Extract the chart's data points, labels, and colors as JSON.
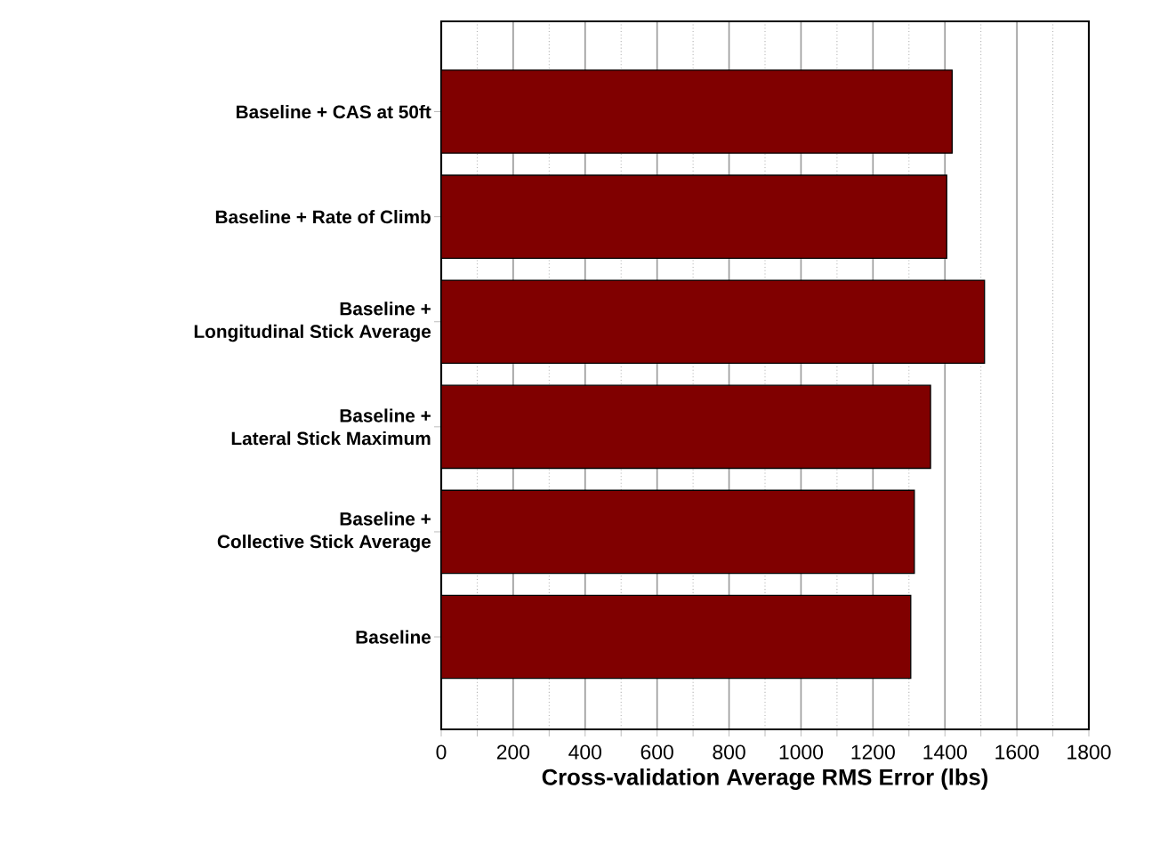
{
  "chart_data": {
    "type": "bar",
    "orientation": "horizontal",
    "categories": [
      "Baseline + CAS at 50ft",
      "Baseline + Rate of Climb",
      "Baseline +\nLongitudinal Stick Average",
      "Baseline +\nLateral Stick Maximum",
      "Baseline +\nCollective Stick Average",
      "Baseline"
    ],
    "values": [
      1420,
      1405,
      1510,
      1360,
      1315,
      1305
    ],
    "color": "#800000",
    "xlabel": "Cross-validation Average RMS Error (lbs)",
    "xlim": [
      0,
      1800
    ],
    "xticks": [
      0,
      200,
      400,
      600,
      800,
      1000,
      1200,
      1400,
      1600,
      1800
    ],
    "grid": "x"
  }
}
